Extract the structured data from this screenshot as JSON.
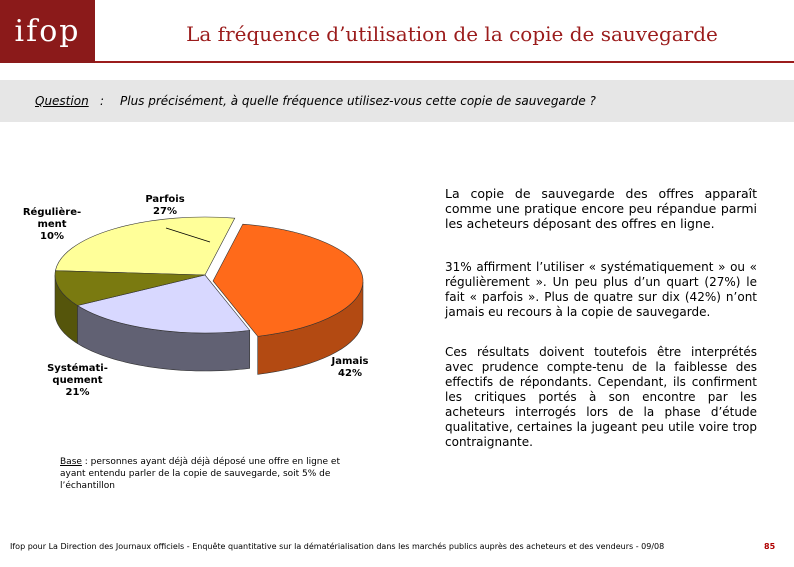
{
  "header": {
    "logo_text": "ifop",
    "title": "La fréquence d’utilisation de la copie de sauvegarde"
  },
  "question": {
    "label": "Question",
    "colon": ":",
    "text": "Plus précisément, à quelle fréquence utilisez-vous cette copie de sauvegarde ?"
  },
  "chart_data": {
    "type": "pie",
    "title": "",
    "slices": [
      {
        "label": "Parfois",
        "value": 27,
        "display": "27%",
        "color": "#ffff99"
      },
      {
        "label": "Jamais",
        "value": 42,
        "display": "42%",
        "color": "#ff6a1a"
      },
      {
        "label": "Systématiquement",
        "value": 21,
        "display": "21%",
        "color": "#d8d8ff"
      },
      {
        "label": "Régulièrement",
        "value": 10,
        "display": "10%",
        "color": "#7a7a10"
      }
    ],
    "labels_rendered": [
      {
        "text": "Régulière-\nment\n10%"
      },
      {
        "text": "Parfois\n27%"
      },
      {
        "text": "Jamais\n42%"
      },
      {
        "text": "Systémati-\nquement\n21%"
      }
    ]
  },
  "commentary": {
    "p1": "La copie de sauvegarde des offres apparaît comme une pratique encore peu répandue parmi les acheteurs déposant des offres en ligne.",
    "p2": "31% affirment l’utiliser « systématiquement » ou « régulièrement ». Un peu plus d’un quart (27%) le fait « parfois ». Plus de quatre sur dix (42%) n’ont jamais eu recours à la copie de sauvegarde.",
    "p3": "Ces résultats doivent toutefois être interprétés avec prudence compte-tenu de la faiblesse des effectifs de répondants. Cependant, ils confirment les critiques portés à son encontre par les acheteurs interrogés lors de la phase d’étude qualitative, certaines la jugeant peu utile voire trop contraignante."
  },
  "base_note": {
    "label": "Base",
    "text": " : personnes ayant déjà déjà déposé une offre en ligne et ayant entendu parler de la copie de sauvegarde, soit 5% de l’échantillon"
  },
  "footer": {
    "text": "Ifop pour La Direction des Journaux officiels - Enquête quantitative sur la dématérialisation dans les marchés publics auprès des acheteurs et des vendeurs - 09/08",
    "page": "85"
  }
}
